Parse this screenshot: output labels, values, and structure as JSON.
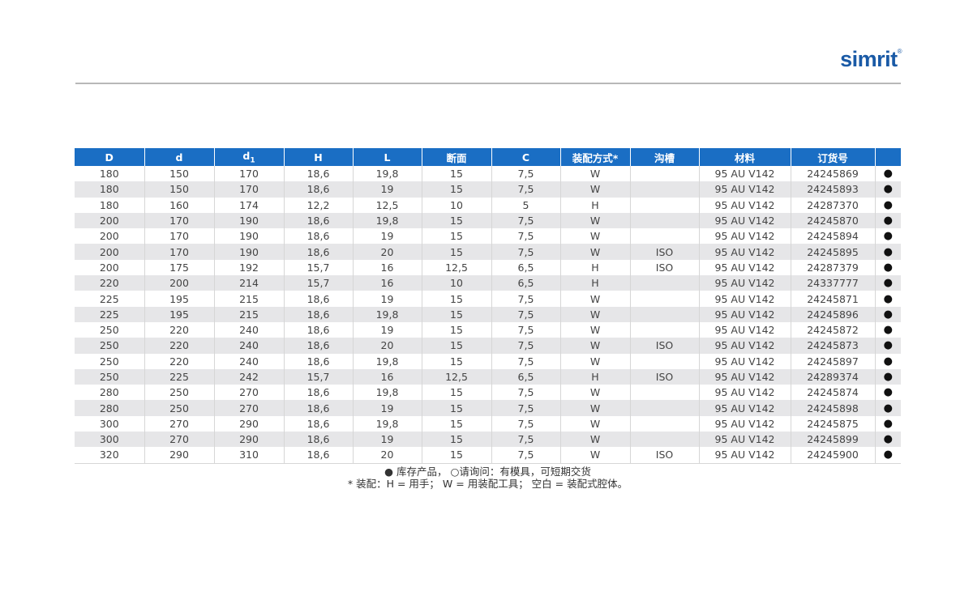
{
  "brand": {
    "name": "simrit",
    "mark": "®"
  },
  "table": {
    "headers": [
      "D",
      "d",
      "d",
      "H",
      "L",
      "断面",
      "C",
      "装配方式*",
      "沟槽",
      "材料",
      "订货号",
      ""
    ],
    "header_subscripts": {
      "2": "1"
    },
    "rows": [
      [
        "180",
        "150",
        "170",
        "18,6",
        "19,8",
        "15",
        "7,5",
        "W",
        "",
        "95 AU V142",
        "24245869",
        "●"
      ],
      [
        "180",
        "150",
        "170",
        "18,6",
        "19",
        "15",
        "7,5",
        "W",
        "",
        "95 AU V142",
        "24245893",
        "●"
      ],
      [
        "180",
        "160",
        "174",
        "12,2",
        "12,5",
        "10",
        "5",
        "H",
        "",
        "95 AU V142",
        "24287370",
        "●"
      ],
      [
        "200",
        "170",
        "190",
        "18,6",
        "19,8",
        "15",
        "7,5",
        "W",
        "",
        "95 AU V142",
        "24245870",
        "●"
      ],
      [
        "200",
        "170",
        "190",
        "18,6",
        "19",
        "15",
        "7,5",
        "W",
        "",
        "95 AU V142",
        "24245894",
        "●"
      ],
      [
        "200",
        "170",
        "190",
        "18,6",
        "20",
        "15",
        "7,5",
        "W",
        "ISO",
        "95 AU V142",
        "24245895",
        "●"
      ],
      [
        "200",
        "175",
        "192",
        "15,7",
        "16",
        "12,5",
        "6,5",
        "H",
        "ISO",
        "95 AU V142",
        "24287379",
        "●"
      ],
      [
        "220",
        "200",
        "214",
        "15,7",
        "16",
        "10",
        "6,5",
        "H",
        "",
        "95 AU V142",
        "24337777",
        "●"
      ],
      [
        "225",
        "195",
        "215",
        "18,6",
        "19",
        "15",
        "7,5",
        "W",
        "",
        "95 AU V142",
        "24245871",
        "●"
      ],
      [
        "225",
        "195",
        "215",
        "18,6",
        "19,8",
        "15",
        "7,5",
        "W",
        "",
        "95 AU V142",
        "24245896",
        "●"
      ],
      [
        "250",
        "220",
        "240",
        "18,6",
        "19",
        "15",
        "7,5",
        "W",
        "",
        "95 AU V142",
        "24245872",
        "●"
      ],
      [
        "250",
        "220",
        "240",
        "18,6",
        "20",
        "15",
        "7,5",
        "W",
        "ISO",
        "95 AU V142",
        "24245873",
        "●"
      ],
      [
        "250",
        "220",
        "240",
        "18,6",
        "19,8",
        "15",
        "7,5",
        "W",
        "",
        "95 AU V142",
        "24245897",
        "●"
      ],
      [
        "250",
        "225",
        "242",
        "15,7",
        "16",
        "12,5",
        "6,5",
        "H",
        "ISO",
        "95 AU V142",
        "24289374",
        "●"
      ],
      [
        "280",
        "250",
        "270",
        "18,6",
        "19,8",
        "15",
        "7,5",
        "W",
        "",
        "95 AU V142",
        "24245874",
        "●"
      ],
      [
        "280",
        "250",
        "270",
        "18,6",
        "19",
        "15",
        "7,5",
        "W",
        "",
        "95 AU V142",
        "24245898",
        "●"
      ],
      [
        "300",
        "270",
        "290",
        "18,6",
        "19,8",
        "15",
        "7,5",
        "W",
        "",
        "95 AU V142",
        "24245875",
        "●"
      ],
      [
        "300",
        "270",
        "290",
        "18,6",
        "19",
        "15",
        "7,5",
        "W",
        "",
        "95 AU V142",
        "24245899",
        "●"
      ],
      [
        "320",
        "290",
        "310",
        "18,6",
        "20",
        "15",
        "7,5",
        "W",
        "ISO",
        "95 AU V142",
        "24245900",
        "●"
      ]
    ]
  },
  "notes": {
    "legend": "● 库存产品， ○请询问：有模具，可短期交货",
    "assembly": "* 装配：H = 用手； W = 用装配工具； 空白 = 装配式腔体。"
  },
  "colors": {
    "header_bg": "#1a6ec4",
    "brand": "#1a5aa6",
    "stripe": "#e6e6e8"
  }
}
